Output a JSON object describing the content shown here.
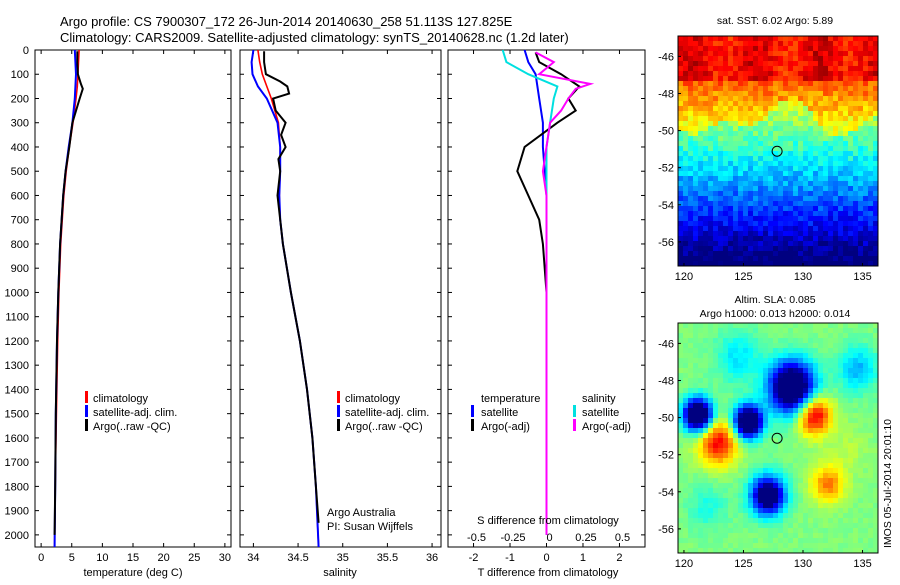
{
  "title_line1": "Argo profile: CS 7900307_172 26-Jun-2014 20140630_258 51.113S 127.825E",
  "title_line2": "Climatology: CARS2009. Satellite-adjusted climatology: synTS_20140628.nc (1.2d later)",
  "colors": {
    "climatology": "#ff0000",
    "satellite": "#0000ff",
    "argo": "#000000",
    "sat_s": "#00e0e0",
    "argo_s": "#ff00ff"
  },
  "legend_left": [
    "climatology",
    "satellite-adj. clim.",
    "Argo(..raw -QC)"
  ],
  "legend_diff": {
    "temp_head": "temperature",
    "sal_head": "salinity",
    "temp_items": [
      "satellite",
      "Argo(-adj)"
    ],
    "sal_items": [
      "satellite",
      "Argo(-adj)"
    ]
  },
  "footnote_line1": "Argo Australia",
  "footnote_line2": "PI: Susan Wijffels",
  "sst_title": "sat. SST: 6.02  Argo: 5.89",
  "sla_title_line1": "Altim. SLA: 0.085",
  "sla_title_line2": "Argo h1000: 0.013  h2000: 0.014",
  "imos_stamp": "IMOS 05-Jul-2014 20:01:10",
  "chart_data": [
    {
      "type": "line",
      "xlabel": "temperature (deg C)",
      "ylabel": "",
      "xlim": [
        -1,
        31
      ],
      "ylim": [
        2050,
        0
      ],
      "xticks": [
        0,
        5,
        10,
        15,
        20,
        25,
        30
      ],
      "yticks": [
        0,
        100,
        200,
        300,
        400,
        500,
        600,
        700,
        800,
        900,
        1000,
        1100,
        1200,
        1300,
        1400,
        1500,
        1600,
        1700,
        1800,
        1900,
        2000
      ],
      "series": [
        {
          "name": "climatology",
          "depth": [
            0,
            50,
            100,
            150,
            200,
            300,
            400,
            500,
            600,
            800,
            1000,
            1200,
            1500,
            1800,
            2050
          ],
          "values": [
            6.2,
            6.1,
            6.0,
            5.9,
            5.7,
            5.2,
            4.6,
            4.1,
            3.7,
            3.2,
            2.9,
            2.7,
            2.5,
            2.3,
            2.2
          ]
        },
        {
          "name": "satellite-adj. clim.",
          "depth": [
            0,
            50,
            100,
            150,
            200,
            300,
            400,
            500,
            600,
            800,
            1000,
            1200,
            1500,
            1800,
            2050
          ],
          "values": [
            5.5,
            5.6,
            5.7,
            5.6,
            5.5,
            5.1,
            4.5,
            4.0,
            3.6,
            3.1,
            2.8,
            2.6,
            2.4,
            2.3,
            2.2
          ]
        },
        {
          "name": "Argo(..raw -QC)",
          "depth": [
            5,
            50,
            100,
            140,
            160,
            200,
            300,
            400,
            500,
            600,
            800,
            1000,
            1200,
            1500,
            1800,
            2000
          ],
          "values": [
            5.9,
            5.9,
            6.0,
            6.5,
            6.8,
            6.3,
            5.1,
            4.6,
            4.0,
            3.6,
            3.1,
            2.8,
            2.6,
            2.4,
            2.3,
            2.2
          ]
        }
      ]
    },
    {
      "type": "line",
      "xlabel": "salinity",
      "xlim": [
        33.85,
        36.1
      ],
      "ylim": [
        2050,
        0
      ],
      "xticks": [
        34,
        34.5,
        35,
        35.5,
        36
      ],
      "xticklabels": [
        "34",
        "34.5",
        "35",
        "35.5",
        "36"
      ],
      "series": [
        {
          "name": "climatology",
          "depth": [
            0,
            50,
            100,
            150,
            200,
            300,
            400,
            500,
            600,
            700,
            800,
            1000,
            1200,
            1400,
            1600,
            1800,
            2050
          ],
          "values": [
            34.05,
            34.07,
            34.1,
            34.15,
            34.2,
            34.28,
            34.3,
            34.3,
            34.29,
            34.3,
            34.33,
            34.42,
            34.52,
            34.6,
            34.66,
            34.7,
            34.73
          ]
        },
        {
          "name": "satellite-adj. clim.",
          "depth": [
            0,
            50,
            100,
            150,
            200,
            300,
            400,
            500,
            600,
            700,
            800,
            1000,
            1200,
            1400,
            1600,
            1800,
            2050
          ],
          "values": [
            34.0,
            33.98,
            33.99,
            34.05,
            34.15,
            34.27,
            34.3,
            34.3,
            34.29,
            34.3,
            34.33,
            34.42,
            34.52,
            34.6,
            34.66,
            34.7,
            34.73
          ]
        },
        {
          "name": "Argo(..raw -QC)",
          "depth": [
            5,
            50,
            100,
            130,
            150,
            180,
            200,
            250,
            300,
            350,
            400,
            450,
            500,
            600,
            700,
            800,
            1000,
            1200,
            1400,
            1600,
            1800,
            1950
          ],
          "values": [
            34.12,
            34.12,
            34.14,
            34.3,
            34.38,
            34.4,
            34.22,
            34.25,
            34.36,
            34.31,
            34.36,
            34.28,
            34.3,
            34.27,
            34.3,
            34.33,
            34.42,
            34.52,
            34.6,
            34.66,
            34.7,
            34.73
          ]
        }
      ]
    },
    {
      "type": "line",
      "xlabel": "T difference from climatology",
      "xlabel_top": "S difference from climatology",
      "xlim": [
        -2.7,
        2.7
      ],
      "ylim": [
        2050,
        0
      ],
      "xticks": [
        -2,
        -1,
        0,
        1,
        2
      ],
      "top_ticklabels": [
        "-0.5",
        "-0.25",
        "0",
        "0.25",
        "0.5"
      ],
      "series": [
        {
          "name": "temperature satellite",
          "depth": [
            0,
            50,
            100,
            200,
            300,
            400,
            600,
            800,
            1000,
            1500,
            2000
          ],
          "values": [
            -0.6,
            -0.5,
            -0.3,
            -0.2,
            -0.1,
            -0.1,
            0.0,
            0.0,
            0.0,
            0.0,
            0.0
          ]
        },
        {
          "name": "temperature Argo(-adj)",
          "depth": [
            10,
            50,
            100,
            150,
            200,
            250,
            300,
            400,
            500,
            600,
            700,
            800,
            1000,
            1500,
            2000
          ],
          "values": [
            -0.3,
            -0.2,
            0.4,
            0.9,
            0.6,
            0.8,
            0.3,
            -0.6,
            -0.8,
            -0.5,
            -0.2,
            -0.1,
            0.0,
            0.0,
            0.0
          ]
        },
        {
          "name": "salinity satellite",
          "depth": [
            0,
            50,
            100,
            150,
            200,
            300,
            400,
            600,
            800,
            1000,
            1500,
            2000
          ],
          "values": [
            -1.2,
            -1.1,
            -0.5,
            0.3,
            0.2,
            0.1,
            0.0,
            0.0,
            0.0,
            0.0,
            0.0,
            0.0
          ]
        },
        {
          "name": "salinity Argo(-adj)",
          "depth": [
            10,
            50,
            100,
            140,
            160,
            200,
            250,
            300,
            400,
            500,
            600,
            800,
            1000,
            1500,
            2000
          ],
          "values": [
            -0.3,
            0.2,
            -0.2,
            1.2,
            0.8,
            0.6,
            0.4,
            0.1,
            0.0,
            -0.1,
            0.0,
            0.0,
            0.0,
            0.0,
            0.0
          ]
        }
      ]
    },
    {
      "type": "heatmap",
      "title": "sat. SST: 6.02  Argo: 5.89",
      "xlim": [
        119.5,
        136.3
      ],
      "ylim": [
        -57.3,
        -44.9
      ],
      "xticks": [
        120,
        125,
        130,
        135
      ],
      "yticks": [
        -46,
        -48,
        -50,
        -52,
        -54,
        -56
      ],
      "marker": [
        127.825,
        -51.113
      ]
    },
    {
      "type": "heatmap",
      "title": "Altim. SLA: 0.085",
      "xlim": [
        119.5,
        136.3
      ],
      "ylim": [
        -57.3,
        -44.9
      ],
      "xticks": [
        120,
        125,
        130,
        135
      ],
      "yticks": [
        -46,
        -48,
        -50,
        -52,
        -54,
        -56
      ],
      "marker": [
        127.825,
        -51.113
      ]
    }
  ]
}
